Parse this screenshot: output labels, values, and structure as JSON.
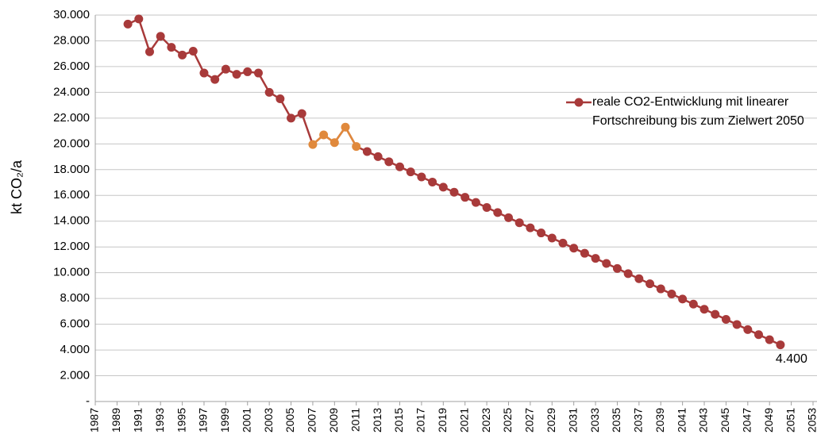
{
  "chart_data": {
    "type": "line",
    "ylabel": "kt CO₂/a",
    "x": [
      1990,
      1991,
      1992,
      1993,
      1994,
      1995,
      1996,
      1997,
      1998,
      1999,
      2000,
      2001,
      2002,
      2003,
      2004,
      2005,
      2006,
      2007,
      2008,
      2009,
      2010,
      2011,
      2012,
      2013,
      2014,
      2015,
      2016,
      2017,
      2018,
      2019,
      2020,
      2021,
      2022,
      2023,
      2024,
      2025,
      2026,
      2027,
      2028,
      2029,
      2030,
      2031,
      2032,
      2033,
      2034,
      2035,
      2036,
      2037,
      2038,
      2039,
      2040,
      2041,
      2042,
      2043,
      2044,
      2045,
      2046,
      2047,
      2048,
      2049,
      2050
    ],
    "series": [
      {
        "name": "reale CO2-Entwicklung mit linearer Fortschreibung bis zum Zielwert 2050",
        "color": "#a83a3a",
        "values": [
          29300,
          29700,
          27150,
          28350,
          27500,
          26900,
          27200,
          25500,
          25000,
          25800,
          25400,
          25600,
          25500,
          24000,
          23500,
          22000,
          22350,
          19950,
          20700,
          20100,
          21300,
          19800,
          19405,
          19010,
          18615,
          18221,
          17826,
          17431,
          17036,
          16641,
          16246,
          15851,
          15456,
          15062,
          14667,
          14272,
          13877,
          13482,
          13087,
          12692,
          12297,
          11903,
          11508,
          11113,
          10718,
          10323,
          9928,
          9533,
          9138,
          8744,
          8349,
          7954,
          7559,
          7164,
          6769,
          6374,
          5979,
          5585,
          5190,
          4795,
          4400
        ],
        "point_colors": [
          "#a83a3a",
          "#a83a3a",
          "#a83a3a",
          "#a83a3a",
          "#a83a3a",
          "#a83a3a",
          "#a83a3a",
          "#a83a3a",
          "#a83a3a",
          "#a83a3a",
          "#a83a3a",
          "#a83a3a",
          "#a83a3a",
          "#a83a3a",
          "#a83a3a",
          "#a83a3a",
          "#a83a3a",
          "#e0893c",
          "#e0893c",
          "#e0893c",
          "#e0893c",
          "#e0893c",
          "#a83a3a",
          "#a83a3a",
          "#a83a3a",
          "#a83a3a",
          "#a83a3a",
          "#a83a3a",
          "#a83a3a",
          "#a83a3a",
          "#a83a3a",
          "#a83a3a",
          "#a83a3a",
          "#a83a3a",
          "#a83a3a",
          "#a83a3a",
          "#a83a3a",
          "#a83a3a",
          "#a83a3a",
          "#a83a3a",
          "#a83a3a",
          "#a83a3a",
          "#a83a3a",
          "#a83a3a",
          "#a83a3a",
          "#a83a3a",
          "#a83a3a",
          "#a83a3a",
          "#a83a3a",
          "#a83a3a",
          "#a83a3a",
          "#a83a3a",
          "#a83a3a",
          "#a83a3a",
          "#a83a3a",
          "#a83a3a",
          "#a83a3a",
          "#a83a3a",
          "#a83a3a",
          "#a83a3a",
          "#a83a3a"
        ],
        "value_labels": [
          null,
          null,
          null,
          null,
          null,
          null,
          null,
          null,
          null,
          null,
          null,
          null,
          null,
          null,
          null,
          null,
          null,
          null,
          null,
          null,
          null,
          null,
          null,
          null,
          null,
          null,
          null,
          null,
          null,
          null,
          null,
          null,
          null,
          null,
          null,
          null,
          null,
          null,
          null,
          null,
          null,
          null,
          null,
          null,
          null,
          null,
          null,
          null,
          null,
          null,
          null,
          null,
          null,
          null,
          null,
          null,
          null,
          null,
          null,
          null,
          "4.400"
        ]
      }
    ],
    "xlim": [
      1987,
      2053
    ],
    "xticks": [
      1987,
      1989,
      1991,
      1993,
      1995,
      1997,
      1999,
      2001,
      2003,
      2005,
      2007,
      2009,
      2011,
      2013,
      2015,
      2017,
      2019,
      2021,
      2023,
      2025,
      2027,
      2029,
      2031,
      2033,
      2035,
      2037,
      2039,
      2041,
      2043,
      2045,
      2047,
      2049,
      2051,
      2053
    ],
    "ylim": [
      0,
      30000
    ],
    "yticks": [
      {
        "value": 0,
        "label": "-"
      },
      {
        "value": 2000,
        "label": "2.000"
      },
      {
        "value": 4000,
        "label": "4.000"
      },
      {
        "value": 6000,
        "label": "6.000"
      },
      {
        "value": 8000,
        "label": "8.000"
      },
      {
        "value": 10000,
        "label": "10.000"
      },
      {
        "value": 12000,
        "label": "12.000"
      },
      {
        "value": 14000,
        "label": "14.000"
      },
      {
        "value": 16000,
        "label": "16.000"
      },
      {
        "value": 18000,
        "label": "18.000"
      },
      {
        "value": 20000,
        "label": "20.000"
      },
      {
        "value": 22000,
        "label": "22.000"
      },
      {
        "value": 24000,
        "label": "24.000"
      },
      {
        "value": 26000,
        "label": "26.000"
      },
      {
        "value": 28000,
        "label": "28.000"
      },
      {
        "value": 30000,
        "label": "30.000"
      }
    ],
    "grid": true,
    "legend": "upper right"
  }
}
